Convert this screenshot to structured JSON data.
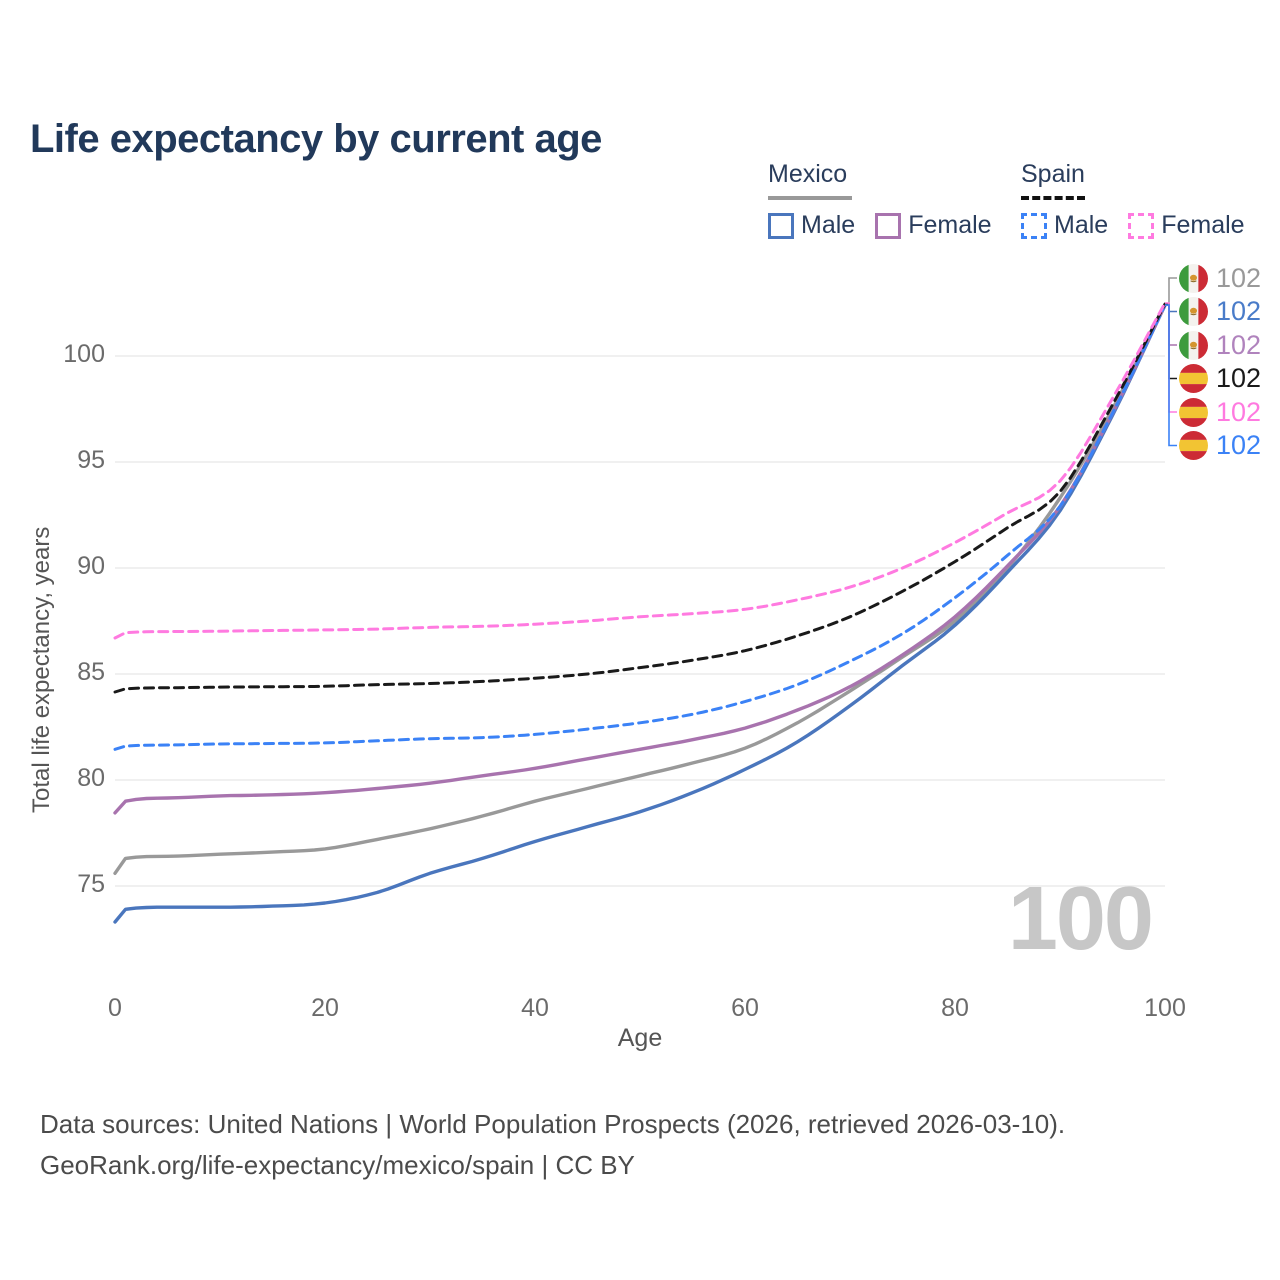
{
  "page": {
    "title": "Life expectancy by current age"
  },
  "legend": {
    "groups": [
      {
        "label": "Mexico",
        "underline": "solid",
        "underline_color": "#999999",
        "items": [
          {
            "label": "Male",
            "color": "#4a76bd",
            "dash": false
          },
          {
            "label": "Female",
            "color": "#a873ae",
            "dash": false
          }
        ]
      },
      {
        "label": "Spain",
        "underline": "dashed",
        "underline_color": "#111111",
        "items": [
          {
            "label": "Male",
            "color": "#3b82f6",
            "dash": true
          },
          {
            "label": "Female",
            "color": "#ff7ae0",
            "dash": true
          }
        ]
      }
    ]
  },
  "chart_data": {
    "type": "line",
    "title": "Life expectancy by current age",
    "xlabel": "Age",
    "ylabel": "Total life expectancy, years",
    "xlim": [
      0,
      100
    ],
    "ylim": [
      72,
      103
    ],
    "xticks": [
      0,
      20,
      40,
      60,
      80,
      100
    ],
    "yticks": [
      75,
      80,
      85,
      90,
      95,
      100
    ],
    "grid": "horizontal",
    "legend_position": "top-right",
    "control_ages": [
      0,
      1,
      5,
      10,
      15,
      20,
      25,
      30,
      35,
      40,
      45,
      50,
      55,
      60,
      65,
      70,
      75,
      80,
      85,
      90,
      95,
      100
    ],
    "series": [
      {
        "slug": "mexico-all",
        "name": "Mexico All",
        "country": "Mexico",
        "sex": "Both",
        "color": "#999999",
        "dash": false,
        "flag": "mexico",
        "end_label": "102",
        "label_color": "#999999",
        "row": 0,
        "values": [
          75.6,
          76.3,
          76.4,
          76.5,
          76.6,
          76.75,
          77.2,
          77.7,
          78.3,
          79.0,
          79.6,
          80.2,
          80.8,
          81.5,
          82.7,
          84.2,
          85.8,
          87.5,
          90.0,
          93.3,
          97.5,
          102.4
        ]
      },
      {
        "slug": "mexico-male",
        "name": "Mexico Male",
        "country": "Mexico",
        "sex": "Male",
        "color": "#4a76bd",
        "dash": false,
        "flag": "mexico",
        "end_label": "102",
        "label_color": "#4a7cc9",
        "row": 1,
        "values": [
          73.3,
          73.9,
          74.0,
          74.0,
          74.05,
          74.2,
          74.7,
          75.6,
          76.3,
          77.1,
          77.8,
          78.5,
          79.4,
          80.5,
          81.8,
          83.5,
          85.4,
          87.3,
          89.8,
          92.7,
          97.2,
          102.4
        ]
      },
      {
        "slug": "mexico-female",
        "name": "Mexico Female",
        "country": "Mexico",
        "sex": "Female",
        "color": "#a873ae",
        "dash": false,
        "flag": "mexico",
        "end_label": "102",
        "label_color": "#b083bd",
        "row": 2,
        "values": [
          78.45,
          79.0,
          79.15,
          79.25,
          79.3,
          79.4,
          79.6,
          79.85,
          80.2,
          80.55,
          81.0,
          81.45,
          81.9,
          82.45,
          83.3,
          84.4,
          85.9,
          87.7,
          90.1,
          92.9,
          97.3,
          102.4
        ]
      },
      {
        "slug": "spain-male",
        "name": "Spain Male",
        "country": "Spain",
        "sex": "Male",
        "color": "#3b82f6",
        "dash": true,
        "flag": "spain",
        "end_label": "102",
        "label_color": "#3b82f6",
        "row": 5,
        "values": [
          81.45,
          81.6,
          81.65,
          81.7,
          81.72,
          81.75,
          81.85,
          81.95,
          82.0,
          82.15,
          82.4,
          82.7,
          83.1,
          83.7,
          84.5,
          85.6,
          86.9,
          88.6,
          90.6,
          92.9,
          97.3,
          102.4
        ]
      },
      {
        "slug": "spain-all",
        "name": "Spain All",
        "country": "Spain",
        "sex": "Both",
        "color": "#1a1a1a",
        "dash": true,
        "flag": "spain",
        "end_label": "102",
        "label_color": "#1a1a1a",
        "row": 3,
        "values": [
          84.15,
          84.3,
          84.35,
          84.38,
          84.4,
          84.42,
          84.5,
          84.55,
          84.65,
          84.8,
          85.0,
          85.3,
          85.65,
          86.1,
          86.8,
          87.7,
          88.9,
          90.3,
          91.9,
          93.6,
          97.7,
          102.45
        ]
      },
      {
        "slug": "spain-female",
        "name": "Spain Female",
        "country": "Spain",
        "sex": "Female",
        "color": "#ff7ae0",
        "dash": true,
        "flag": "spain",
        "end_label": "102",
        "label_color": "#ff7ae0",
        "row": 4,
        "values": [
          86.7,
          86.95,
          87.0,
          87.02,
          87.05,
          87.08,
          87.12,
          87.2,
          87.25,
          87.35,
          87.5,
          87.7,
          87.85,
          88.05,
          88.5,
          89.1,
          90.0,
          91.2,
          92.6,
          94.1,
          98.0,
          102.5
        ]
      }
    ]
  },
  "watermark": "100",
  "footer": {
    "line1": "Data sources: United Nations | World Population Prospects (2026, retrieved 2026-03-10).",
    "line2": "GeoRank.org/life-expectancy/mexico/spain | CC BY"
  }
}
